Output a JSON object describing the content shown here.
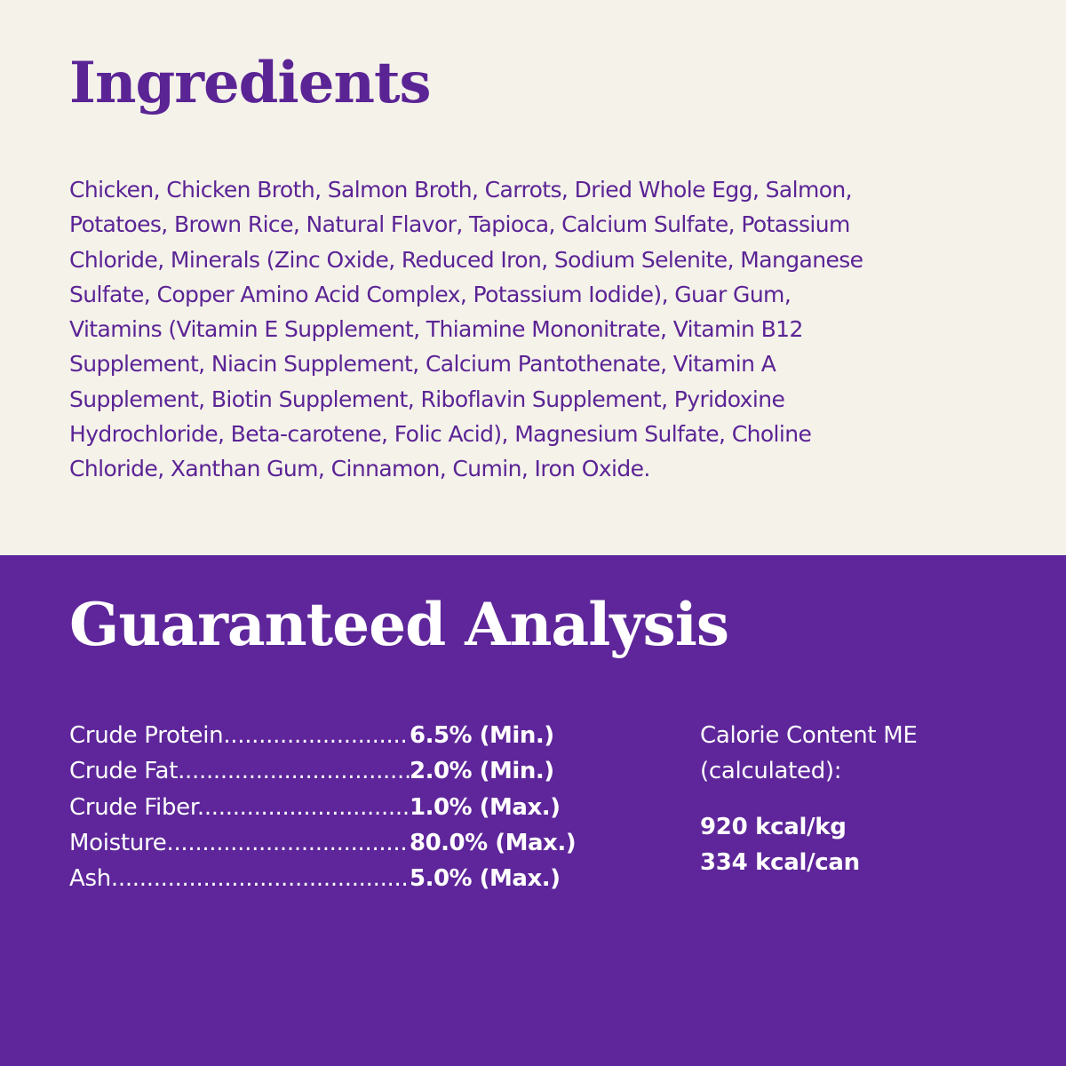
{
  "colors": {
    "background": "#f5f2ea",
    "purple": "#5e269a",
    "text_purple": "#5b2495"
  },
  "ingredients": {
    "title": "Ingredients",
    "lines": [
      "Chicken, Chicken Broth, Salmon Broth, Carrots, Dried Whole Egg, Salmon,",
      "Potatoes, Brown Rice, Natural Flavor, Tapioca, Calcium Sulfate, Potassium",
      "Chloride, Minerals (Zinc Oxide, Reduced Iron, Sodium Selenite, Manganese",
      "Sulfate, Copper Amino Acid Complex, Potassium Iodide), Guar Gum,",
      "Vitamins (Vitamin E Supplement, Thiamine Mononitrate, Vitamin B12",
      "Supplement, Niacin Supplement, Calcium Pantothenate, Vitamin A",
      "Supplement, Biotin Supplement, Riboflavin Supplement, Pyridoxine",
      "Hydrochloride, Beta-carotene, Folic Acid), Magnesium Sulfate, Choline",
      "Chloride, Xanthan Gum, Cinnamon, Cumin, Iron Oxide."
    ]
  },
  "analysis": {
    "title": "Guaranteed Analysis",
    "rows": [
      {
        "label": "Crude  Protein................................",
        "value": "6.5% (Min.)"
      },
      {
        "label": "Crude  Fat........................................",
        "value": "2.0% (Min.)"
      },
      {
        "label": "Crude  Fiber......................................",
        "value": "1.0% (Max.)"
      },
      {
        "label": "Moisture............................................",
        "value": "80.0% (Max.)"
      },
      {
        "label": "Ash....................................................",
        "value": "5.0% (Max.)"
      }
    ],
    "calorie": {
      "label_line1": "Calorie Content ME",
      "label_line2": "(calculated):",
      "per_kg": "920 kcal/kg",
      "per_can": "334 kcal/can"
    }
  }
}
